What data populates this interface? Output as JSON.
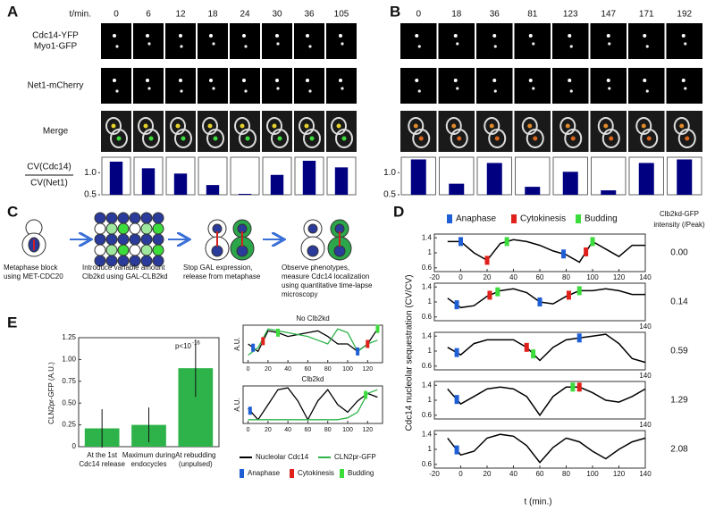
{
  "panel_labels": [
    "A",
    "B",
    "C",
    "D",
    "E"
  ],
  "panel_c": {
    "steps": [
      [
        "Metaphase block",
        "using MET-CDC20"
      ],
      [
        "Introduce variable amount",
        "Clb2kd using GAL-CLB2kd"
      ],
      [
        "Stop GAL expression,",
        "release from metaphase"
      ],
      [
        "Observe phenotypes,",
        "measure Cdc14 localization",
        "using quantitative time-lapse",
        "microscopy"
      ]
    ]
  },
  "panel_d": {
    "legend": [
      {
        "name": "Anaphase",
        "color": "#1f5fd6"
      },
      {
        "name": "Cytokinesis",
        "color": "#e0201b"
      },
      {
        "name": "Budding",
        "color": "#3ddc3d"
      }
    ],
    "intensity_header": [
      "Clb2kd-GFP",
      "intensity (/Peak)"
    ],
    "ylabel": "Cdc14 nucleolar sequestration (CV/CV)",
    "xlabel": "t (min.)"
  },
  "panel_e": {
    "legend": [
      {
        "name": "Anaphase",
        "color": "#1f5fd6"
      },
      {
        "name": "Cytokinesis",
        "color": "#e0201b"
      },
      {
        "name": "Budding",
        "color": "#3ddc3d"
      }
    ]
  },
  "chart_data": [
    {
      "type": "strip",
      "time_label": "t/min.",
      "categories": [
        "0",
        "6",
        "12",
        "18",
        "24",
        "30",
        "36",
        "105"
      ],
      "row_labels": [
        [
          "Cdc14-YFP",
          "Myo1-GFP"
        ],
        [
          "Net1-mCherry"
        ],
        [
          "Merge"
        ]
      ],
      "ylabel": [
        "CV(Cdc14)",
        "CV(Net1)"
      ],
      "values": [
        1.25,
        1.1,
        0.98,
        0.72,
        0.52,
        0.95,
        1.27,
        1.12
      ],
      "color": "#000080",
      "ylim": [
        0.5,
        1.35
      ],
      "yticks": [
        0.5,
        {
          "value": 1,
          "label": "1.0"
        }
      ]
    },
    {
      "type": "strip",
      "categories": [
        "0",
        "18",
        "36",
        "81",
        "123",
        "147",
        "171",
        "192"
      ],
      "values": [
        1.3,
        0.75,
        1.22,
        0.68,
        1.02,
        0.6,
        1.22,
        1.3
      ],
      "color": "#000080",
      "ylim": [
        0.5,
        1.35
      ],
      "yticks": [
        0.5,
        {
          "value": 1,
          "label": "1.0"
        }
      ]
    },
    {
      "type": "line",
      "intensity": {
        "value": 0,
        "label": "0.00"
      },
      "x": [
        -10,
        0,
        10,
        20,
        30,
        40,
        50,
        60,
        70,
        80,
        90,
        100,
        110,
        120,
        130,
        140
      ],
      "values": [
        1.3,
        1.3,
        1.0,
        0.8,
        1.25,
        1.35,
        1.3,
        1.2,
        1.05,
        0.95,
        0.75,
        1.3,
        1.1,
        0.9,
        1.2,
        1.2
      ],
      "anaphase": [
        0,
        78
      ],
      "cytokinesis": [
        20,
        95
      ],
      "budding": [
        35,
        100
      ],
      "xlim": [
        -20,
        140
      ],
      "xticks": [
        -20,
        0,
        20,
        40,
        60,
        80,
        100,
        120,
        140
      ],
      "ylim": [
        0.5,
        1.5
      ],
      "yticks": [
        0.6,
        1,
        1.4
      ]
    },
    {
      "type": "line",
      "intensity": {
        "value": 0.14,
        "label": "0.14"
      },
      "x": [
        -10,
        0,
        10,
        20,
        30,
        40,
        50,
        60,
        70,
        80,
        90,
        100,
        110,
        120,
        130,
        140
      ],
      "values": [
        1.1,
        0.85,
        0.9,
        1.15,
        1.3,
        1.35,
        1.25,
        1.0,
        0.95,
        1.15,
        1.3,
        1.3,
        1.35,
        1.3,
        1.2,
        1.2
      ],
      "anaphase": [
        -3,
        60
      ],
      "cytokinesis": [
        22,
        82
      ],
      "budding": [
        28,
        90
      ],
      "xlim": [
        -20,
        140
      ],
      "xticks": [
        140
      ],
      "ylim": [
        0.5,
        1.5
      ],
      "yticks": [
        0.6,
        1,
        1.4
      ]
    },
    {
      "type": "line",
      "intensity": {
        "value": 0.59,
        "label": "0.59"
      },
      "x": [
        -10,
        0,
        10,
        20,
        30,
        40,
        50,
        60,
        70,
        80,
        90,
        100,
        110,
        120,
        130,
        140
      ],
      "values": [
        1.1,
        0.9,
        1.2,
        1.3,
        1.3,
        1.3,
        1.1,
        0.75,
        1.1,
        1.3,
        1.35,
        1.4,
        1.45,
        1.2,
        0.8,
        0.7
      ],
      "anaphase": [
        -3,
        90
      ],
      "cytokinesis": [
        50
      ],
      "budding": [
        55
      ],
      "xlim": [
        -20,
        140
      ],
      "xticks": [
        140
      ],
      "ylim": [
        0.5,
        1.5
      ],
      "yticks": [
        0.6,
        1,
        1.4
      ]
    },
    {
      "type": "line",
      "intensity": {
        "value": 1.29,
        "label": "1.29"
      },
      "x": [
        -10,
        0,
        10,
        20,
        30,
        40,
        50,
        60,
        70,
        80,
        90,
        100,
        110,
        120,
        130,
        140
      ],
      "values": [
        1.3,
        0.9,
        1.1,
        1.3,
        1.35,
        1.3,
        1.1,
        0.6,
        1.1,
        1.35,
        1.35,
        1.2,
        1.0,
        0.95,
        1.1,
        1.3
      ],
      "anaphase": [
        -3
      ],
      "cytokinesis": [
        90
      ],
      "budding": [
        85
      ],
      "xlim": [
        -20,
        140
      ],
      "xticks": [
        140
      ],
      "ylim": [
        0.5,
        1.5
      ],
      "yticks": [
        0.6,
        1,
        1.4
      ]
    },
    {
      "type": "line",
      "intensity": {
        "value": 2.08,
        "label": "2.08"
      },
      "x": [
        -10,
        0,
        10,
        20,
        30,
        40,
        50,
        60,
        70,
        80,
        90,
        100,
        110,
        120,
        130,
        140
      ],
      "values": [
        1.3,
        0.85,
        0.95,
        1.3,
        1.4,
        1.35,
        1.1,
        0.65,
        1.05,
        1.3,
        1.2,
        0.95,
        0.75,
        1.0,
        1.2,
        1.3
      ],
      "anaphase": [
        -3
      ],
      "cytokinesis": [],
      "budding": [],
      "xlim": [
        -20,
        140
      ],
      "xticks": [
        -20,
        0,
        20,
        40,
        60,
        80,
        100,
        120,
        140
      ],
      "ylim": [
        0.5,
        1.5
      ],
      "yticks": [
        0.6,
        1,
        1.4
      ]
    },
    {
      "type": "errorbar",
      "ylabel": "CLN2pr-GFP (A.U.)",
      "categories": [
        [
          "At the 1st",
          "Cdc14 release"
        ],
        [
          "Maximum during",
          "endocycles"
        ],
        [
          "At rebudding",
          "(unpulsed)"
        ]
      ],
      "values": [
        0.21,
        0.25,
        0.9
      ],
      "errors": [
        0.22,
        0.2,
        0.33
      ],
      "color": "#2db34a",
      "annotation": {
        "base": "p<10",
        "exponent": "-16"
      },
      "ylim": [
        0,
        1.25
      ],
      "yticks": [
        0,
        0.25,
        {
          "value": 0.5,
          "label": "0.50"
        },
        0.75,
        {
          "value": 1,
          "label": "1.00"
        },
        1.25
      ]
    },
    {
      "type": "multiline",
      "title": "No Clb2kd",
      "ylabel": "A.U.",
      "x": [
        0,
        10,
        20,
        30,
        40,
        50,
        60,
        70,
        80,
        90,
        100,
        110,
        120,
        130
      ],
      "series": [
        {
          "name": "Nucleolar Cdc14",
          "color": "#000000",
          "values": [
            0.5,
            0.3,
            0.85,
            0.8,
            0.7,
            0.75,
            0.8,
            0.85,
            0.7,
            0.5,
            0.5,
            0.3,
            0.5,
            0.9
          ]
        },
        {
          "name": "CLN2pr-GFP",
          "color": "#2db34a",
          "values": [
            0.2,
            0.4,
            0.9,
            0.85,
            0.8,
            0.75,
            0.7,
            0.6,
            0.5,
            0.9,
            0.8,
            0.3,
            0.5,
            0.6
          ]
        }
      ],
      "anaphase": [
        5,
        110
      ],
      "cytokinesis": [
        15,
        120
      ],
      "budding": [
        30,
        130
      ],
      "xlim": [
        -5,
        135
      ],
      "xticks": [
        0,
        20,
        40,
        60,
        80,
        100,
        120
      ],
      "ylim": [
        0,
        1
      ]
    },
    {
      "type": "multiline",
      "title": "Clb2kd",
      "ylabel": "A.U.",
      "x": [
        0,
        10,
        20,
        30,
        40,
        50,
        60,
        70,
        80,
        90,
        100,
        110,
        120,
        130
      ],
      "series": [
        {
          "color": "#000000",
          "values": [
            0.4,
            0.1,
            0.5,
            0.9,
            0.95,
            0.6,
            0.1,
            0.6,
            0.9,
            0.5,
            0.3,
            0.6,
            0.8,
            0.7
          ]
        },
        {
          "color": "#2db34a",
          "values": [
            0.1,
            0.1,
            0.1,
            0.1,
            0.1,
            0.1,
            0.1,
            0.1,
            0.1,
            0.1,
            0.15,
            0.3,
            0.8,
            0.9
          ]
        }
      ],
      "anaphase": [
        2
      ],
      "cytokinesis": [],
      "budding": [
        118
      ],
      "xlim": [
        -5,
        135
      ],
      "xticks": [
        0,
        20,
        40,
        60,
        80,
        100,
        120
      ],
      "ylim": [
        0,
        1
      ]
    }
  ]
}
